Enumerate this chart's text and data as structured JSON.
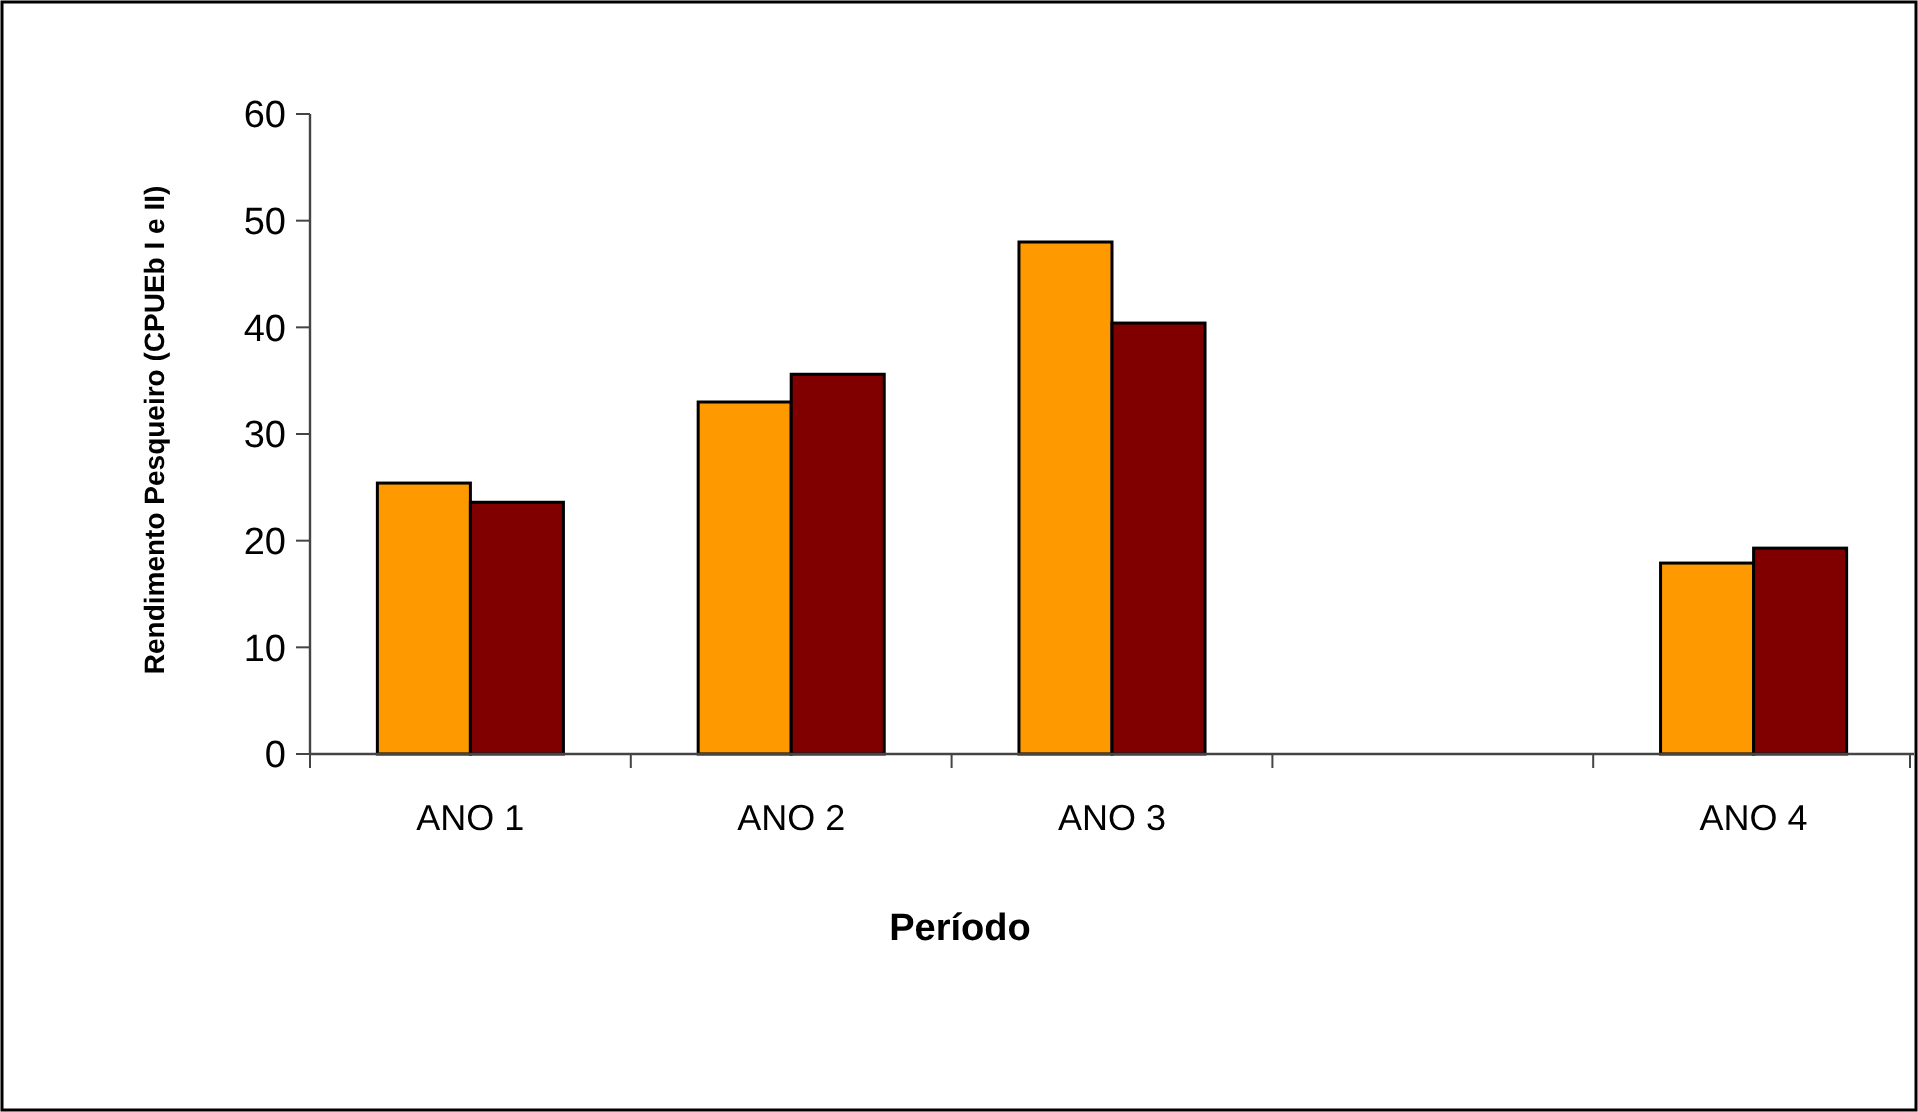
{
  "chart_data": {
    "type": "bar",
    "xlabel": "Período",
    "ylabel": "Rendimento Pesqueiro (CPUEb I e II)",
    "categories": [
      "ANO 1",
      "ANO 2",
      "ANO 3",
      null,
      "ANO 4"
    ],
    "series": [
      {
        "color": "#ff9900",
        "values": [
          25.4,
          33.0,
          48.0,
          null,
          17.9
        ]
      },
      {
        "color": "#800000",
        "values": [
          23.6,
          35.6,
          40.4,
          null,
          19.3
        ]
      }
    ],
    "ylim": [
      0,
      60
    ],
    "yticks": [
      0,
      10,
      20,
      30,
      40,
      50,
      60
    ],
    "grid": false
  }
}
